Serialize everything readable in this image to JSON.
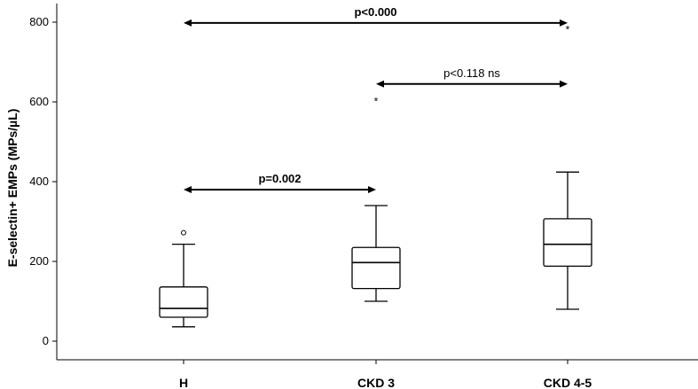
{
  "chart_data": {
    "type": "box",
    "ylabel": "E-selectin+ EMPs (MPs/µL)",
    "xlabel": "",
    "ylim": [
      -50,
      830
    ],
    "yticks": [
      0,
      200,
      400,
      600,
      800
    ],
    "categories": [
      "H",
      "CKD 3",
      "CKD 4-5"
    ],
    "boxes": [
      {
        "category": "H",
        "whisker_low": 36,
        "q1": 60,
        "median": 82,
        "q3": 136,
        "whisker_high": 243,
        "outliers": [
          {
            "value": 272,
            "marker": "circle"
          }
        ]
      },
      {
        "category": "CKD 3",
        "whisker_low": 100,
        "q1": 132,
        "median": 197,
        "q3": 235,
        "whisker_high": 340,
        "outliers": [
          {
            "value": 610,
            "marker": "star"
          }
        ]
      },
      {
        "category": "CKD 4-5",
        "whisker_low": 80,
        "q1": 188,
        "median": 243,
        "q3": 307,
        "whisker_high": 424,
        "outliers": [
          {
            "value": 790,
            "marker": "star"
          }
        ]
      }
    ],
    "comparisons": [
      {
        "from": "H",
        "to": "CKD 4-5",
        "y": 798,
        "label": "p<0.000",
        "bold": true
      },
      {
        "from": "CKD 3",
        "to": "CKD 4-5",
        "y": 645,
        "label": "p<0.118 ns",
        "bold": false
      },
      {
        "from": "H",
        "to": "CKD 3",
        "y": 380,
        "label": "p=0.002",
        "bold": true
      }
    ],
    "grid": false
  }
}
